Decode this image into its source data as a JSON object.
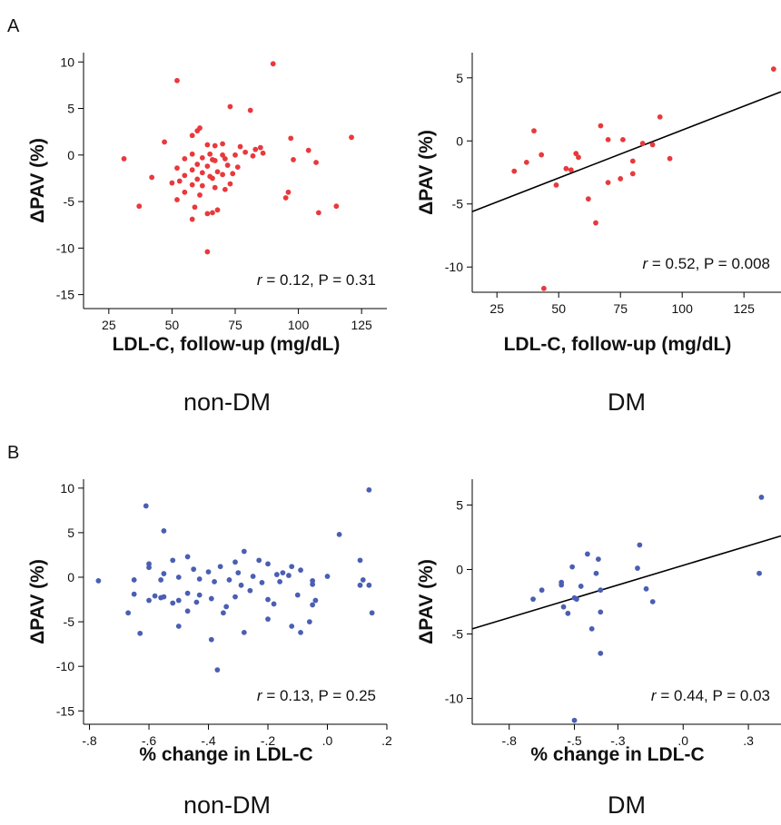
{
  "panels": {
    "a": "A",
    "b": "B"
  },
  "chart_data": [
    {
      "id": "A-nonDM",
      "type": "scatter",
      "xlabel": "LDL-C, follow-up (mg/dL)",
      "ylabel": "ΔPAV (%)",
      "caption": "non-DM",
      "stat_r": "r",
      "stat_rest": " = 0.12, P = 0.31",
      "xlim": [
        15,
        135
      ],
      "ylim": [
        -16.5,
        11
      ],
      "xticks": [
        25,
        50,
        75,
        100,
        125
      ],
      "xticklabels": [
        "25",
        "50",
        "75",
        "100",
        "125"
      ],
      "yticks": [
        10,
        5,
        0,
        -5,
        -10,
        -15
      ],
      "yticklabels": [
        "10",
        "5",
        "0",
        "-5",
        "-10",
        "-15"
      ],
      "point_color": "#e8393c",
      "regression": null,
      "points": [
        [
          90,
          9.8
        ],
        [
          52,
          8.0
        ],
        [
          73,
          5.2
        ],
        [
          81,
          4.8
        ],
        [
          61,
          2.9
        ],
        [
          60,
          2.6
        ],
        [
          58,
          2.1
        ],
        [
          121,
          1.9
        ],
        [
          97,
          1.8
        ],
        [
          47,
          1.4
        ],
        [
          64,
          1.1
        ],
        [
          67,
          1.0
        ],
        [
          70,
          1.2
        ],
        [
          77,
          0.9
        ],
        [
          85,
          0.8
        ],
        [
          83,
          0.6
        ],
        [
          104,
          0.5
        ],
        [
          79,
          0.3
        ],
        [
          86,
          0.2
        ],
        [
          58,
          0.1
        ],
        [
          65,
          0.1
        ],
        [
          70,
          0.0
        ],
        [
          75,
          0.0
        ],
        [
          82,
          -0.1
        ],
        [
          31,
          -0.4
        ],
        [
          55,
          -0.4
        ],
        [
          62,
          -0.3
        ],
        [
          66,
          -0.5
        ],
        [
          71,
          -0.4
        ],
        [
          98,
          -0.5
        ],
        [
          67,
          -0.6
        ],
        [
          107,
          -0.8
        ],
        [
          60,
          -1.0
        ],
        [
          64,
          -1.2
        ],
        [
          72,
          -1.1
        ],
        [
          76,
          -1.3
        ],
        [
          52,
          -1.4
        ],
        [
          58,
          -1.6
        ],
        [
          62,
          -1.9
        ],
        [
          68,
          -1.8
        ],
        [
          74,
          -2.0
        ],
        [
          55,
          -2.2
        ],
        [
          65,
          -2.3
        ],
        [
          70,
          -2.1
        ],
        [
          42,
          -2.4
        ],
        [
          60,
          -2.6
        ],
        [
          66,
          -2.5
        ],
        [
          58,
          -3.2
        ],
        [
          53,
          -2.8
        ],
        [
          50,
          -3.0
        ],
        [
          62,
          -3.3
        ],
        [
          67,
          -3.5
        ],
        [
          73,
          -3.1
        ],
        [
          71,
          -3.7
        ],
        [
          55,
          -4.0
        ],
        [
          61,
          -4.3
        ],
        [
          96,
          -4.0
        ],
        [
          95,
          -4.6
        ],
        [
          52,
          -4.8
        ],
        [
          37,
          -5.5
        ],
        [
          115,
          -5.5
        ],
        [
          59,
          -5.6
        ],
        [
          68,
          -5.9
        ],
        [
          64,
          -6.3
        ],
        [
          66,
          -6.2
        ],
        [
          108,
          -6.2
        ],
        [
          58,
          -6.9
        ],
        [
          64,
          -10.4
        ]
      ]
    },
    {
      "id": "A-DM",
      "type": "scatter",
      "xlabel": "LDL-C, follow-up (mg/dL)",
      "ylabel": "ΔPAV (%)",
      "caption": "DM",
      "stat_r": "r",
      "stat_rest": " = 0.52, P = 0.008",
      "xlim": [
        15,
        140
      ],
      "ylim": [
        -12,
        7
      ],
      "xticks": [
        25,
        50,
        75,
        100,
        125
      ],
      "xticklabels": [
        "25",
        "50",
        "75",
        "100",
        "125"
      ],
      "yticks": [
        5,
        0,
        -5,
        -10
      ],
      "yticklabels": [
        "5",
        "0",
        "-5",
        "-10"
      ],
      "point_color": "#e8393c",
      "regression": {
        "x": [
          15,
          140
        ],
        "y": [
          -5.6,
          3.9
        ]
      },
      "points": [
        [
          137,
          5.7
        ],
        [
          91,
          1.9
        ],
        [
          67,
          1.2
        ],
        [
          40,
          0.8
        ],
        [
          70,
          0.1
        ],
        [
          76,
          0.1
        ],
        [
          84,
          -0.2
        ],
        [
          88,
          -0.3
        ],
        [
          57,
          -1.0
        ],
        [
          43,
          -1.1
        ],
        [
          58,
          -1.3
        ],
        [
          95,
          -1.4
        ],
        [
          37,
          -1.7
        ],
        [
          80,
          -1.6
        ],
        [
          53,
          -2.2
        ],
        [
          55,
          -2.3
        ],
        [
          32,
          -2.4
        ],
        [
          80,
          -2.6
        ],
        [
          75,
          -3.0
        ],
        [
          70,
          -3.3
        ],
        [
          49,
          -3.5
        ],
        [
          62,
          -4.6
        ],
        [
          65,
          -6.5
        ],
        [
          44,
          -11.7
        ]
      ]
    },
    {
      "id": "B-nonDM",
      "type": "scatter",
      "xlabel": "% change in LDL-C",
      "ylabel": "ΔPAV (%)",
      "caption": "non-DM",
      "stat_r": "r",
      "stat_rest": " = 0.13, P = 0.25",
      "xlim": [
        -0.82,
        0.2
      ],
      "ylim": [
        -16.5,
        11
      ],
      "xticks": [
        -0.8,
        -0.6,
        -0.4,
        -0.2,
        0.0,
        0.2
      ],
      "xticklabels": [
        "-.8",
        "-.6",
        "-.4",
        "-.2",
        ".0",
        ".2"
      ],
      "yticks": [
        10,
        5,
        0,
        -5,
        -10,
        -15
      ],
      "yticklabels": [
        "10",
        "5",
        "0",
        "-5",
        "-10",
        "-15"
      ],
      "point_color": "#4a5fb3",
      "regression": null,
      "points": [
        [
          0.14,
          9.8
        ],
        [
          -0.61,
          8.0
        ],
        [
          -0.55,
          5.2
        ],
        [
          0.04,
          4.8
        ],
        [
          -0.28,
          2.9
        ],
        [
          -0.23,
          1.9
        ],
        [
          0.11,
          1.9
        ],
        [
          -0.47,
          2.3
        ],
        [
          -0.6,
          1.5
        ],
        [
          -0.52,
          1.9
        ],
        [
          -0.6,
          1.1
        ],
        [
          -0.36,
          1.2
        ],
        [
          -0.31,
          1.7
        ],
        [
          -0.2,
          1.5
        ],
        [
          -0.12,
          1.2
        ],
        [
          -0.15,
          0.5
        ],
        [
          -0.09,
          0.8
        ],
        [
          -0.45,
          0.9
        ],
        [
          -0.4,
          0.6
        ],
        [
          -0.55,
          0.4
        ],
        [
          -0.3,
          0.5
        ],
        [
          -0.25,
          0.1
        ],
        [
          -0.17,
          0.3
        ],
        [
          -0.13,
          0.2
        ],
        [
          0.0,
          0.1
        ],
        [
          0.12,
          -0.3
        ],
        [
          -0.77,
          -0.4
        ],
        [
          -0.65,
          -0.3
        ],
        [
          -0.56,
          -0.3
        ],
        [
          -0.5,
          0.0
        ],
        [
          -0.43,
          -0.2
        ],
        [
          -0.38,
          -0.5
        ],
        [
          -0.33,
          -0.3
        ],
        [
          -0.29,
          -0.9
        ],
        [
          -0.22,
          -0.6
        ],
        [
          -0.16,
          -0.5
        ],
        [
          -0.05,
          -0.4
        ],
        [
          0.11,
          -0.9
        ],
        [
          0.14,
          -0.9
        ],
        [
          -0.05,
          -0.8
        ],
        [
          -0.65,
          -1.9
        ],
        [
          -0.58,
          -2.1
        ],
        [
          -0.56,
          -2.3
        ],
        [
          -0.5,
          -2.6
        ],
        [
          -0.47,
          -1.8
        ],
        [
          -0.43,
          -2.0
        ],
        [
          -0.39,
          -2.4
        ],
        [
          -0.31,
          -2.2
        ],
        [
          -0.26,
          -1.5
        ],
        [
          -0.2,
          -2.5
        ],
        [
          -0.1,
          -2.0
        ],
        [
          -0.6,
          -2.6
        ],
        [
          -0.55,
          -2.2
        ],
        [
          -0.52,
          -2.9
        ],
        [
          -0.44,
          -2.8
        ],
        [
          -0.34,
          -3.3
        ],
        [
          -0.18,
          -3.0
        ],
        [
          -0.05,
          -3.1
        ],
        [
          -0.04,
          -2.6
        ],
        [
          -0.67,
          -4.0
        ],
        [
          -0.47,
          -3.8
        ],
        [
          -0.35,
          -4.0
        ],
        [
          -0.2,
          -4.7
        ],
        [
          -0.12,
          -5.5
        ],
        [
          -0.5,
          -5.5
        ],
        [
          -0.06,
          -5.0
        ],
        [
          -0.63,
          -6.3
        ],
        [
          -0.28,
          -6.2
        ],
        [
          -0.09,
          -6.2
        ],
        [
          0.15,
          -4.0
        ],
        [
          -0.39,
          -7.0
        ],
        [
          -0.37,
          -10.4
        ]
      ]
    },
    {
      "id": "B-DM",
      "type": "scatter",
      "xlabel": "% change in LDL-C",
      "ylabel": "ΔPAV (%)",
      "caption": "DM",
      "stat_r": "r",
      "stat_rest": " = 0.44, P = 0.03",
      "xlim": [
        -0.97,
        0.45
      ],
      "ylim": [
        -12,
        7
      ],
      "xticks": [
        -0.8,
        -0.5,
        -0.3,
        0.0,
        0.3
      ],
      "xticklabels": [
        "-.8",
        "-.5",
        "-.3",
        ".0",
        ".3"
      ],
      "yticks": [
        5,
        0,
        -5,
        -10
      ],
      "yticklabels": [
        "5",
        "0",
        "-5",
        "-10"
      ],
      "point_color": "#4a5fb3",
      "regression": {
        "x": [
          -0.97,
          0.45
        ],
        "y": [
          -4.6,
          2.6
        ]
      },
      "points": [
        [
          0.36,
          5.6
        ],
        [
          0.35,
          -0.3
        ],
        [
          -0.2,
          1.9
        ],
        [
          -0.44,
          1.2
        ],
        [
          -0.39,
          0.8
        ],
        [
          -0.51,
          0.2
        ],
        [
          -0.4,
          -0.3
        ],
        [
          -0.21,
          0.1
        ],
        [
          -0.56,
          -1.0
        ],
        [
          -0.56,
          -1.2
        ],
        [
          -0.47,
          -1.3
        ],
        [
          -0.65,
          -1.6
        ],
        [
          -0.38,
          -1.6
        ],
        [
          -0.17,
          -1.5
        ],
        [
          -0.69,
          -2.3
        ],
        [
          -0.5,
          -2.2
        ],
        [
          -0.55,
          -2.9
        ],
        [
          -0.14,
          -2.5
        ],
        [
          -0.49,
          -2.3
        ],
        [
          -0.53,
          -3.4
        ],
        [
          -0.38,
          -3.3
        ],
        [
          -0.42,
          -4.6
        ],
        [
          -0.38,
          -6.5
        ],
        [
          -0.5,
          -11.7
        ]
      ]
    }
  ]
}
